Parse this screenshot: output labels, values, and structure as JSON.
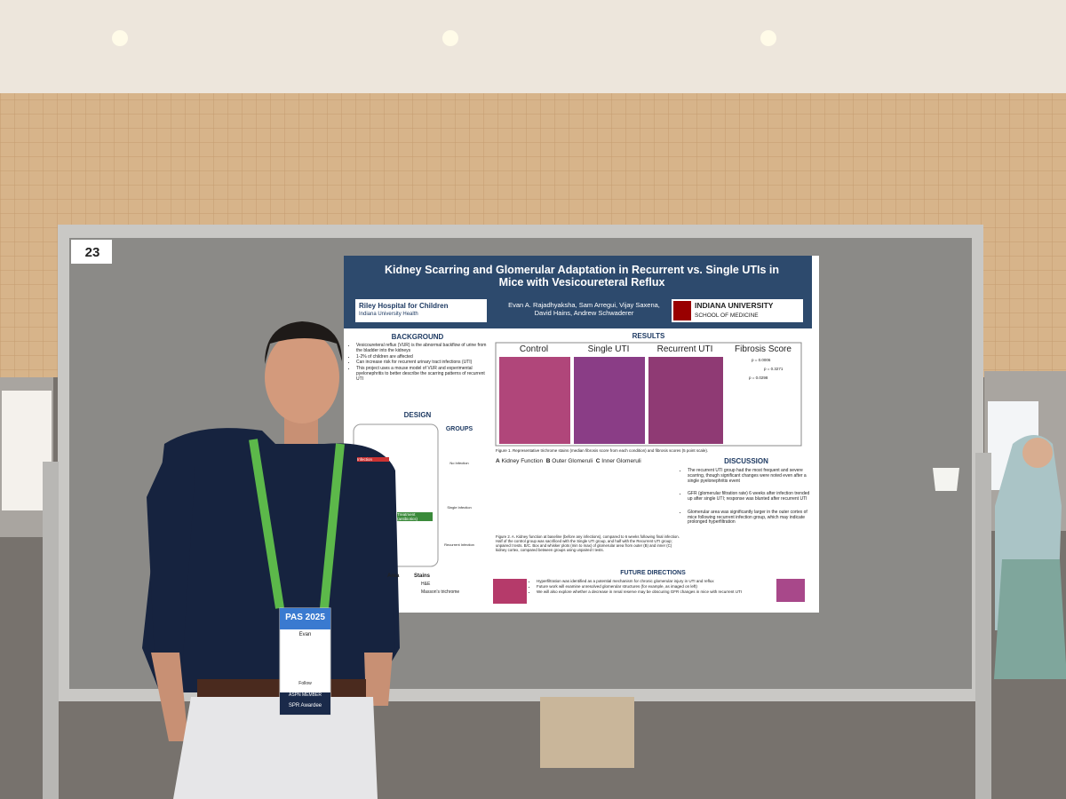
{
  "board_number": "23",
  "poster": {
    "title": "Kidney Scarring and Glomerular Adaptation in Recurrent vs. Single UTIs in Mice with Vesicoureteral Reflux",
    "authors": "Evan A. Rajadhyaksha, Sam Arregui, Vijay Saxena, David Hains, Andrew Schwaderer",
    "logo_left": "Riley Hospital for Children",
    "logo_left_sub": "Indiana University Health",
    "logo_right": "INDIANA UNIVERSITY",
    "logo_right_sub": "SCHOOL OF MEDICINE",
    "background": {
      "heading": "BACKGROUND",
      "bullets": [
        "Vesicoureteral reflux (VUR) is the abnormal backflow of urine from the bladder into the kidneys",
        "1-2% of children are affected",
        "Can increase risk for recurrent urinary tract infections (UTI)",
        "This project uses a mouse model of VUR and experimental pyelonephritis to better describe the scarring patterns of recurrent UTI"
      ]
    },
    "design": {
      "heading": "DESIGN",
      "groups_heading": "GROUPS",
      "groups": [
        "No Infection",
        "Single Infection",
        "Recurrent Infection"
      ],
      "infection": "Infection",
      "treatment": "Treatment (antibiotics)",
      "area": "Area",
      "stains_heading": "Stains",
      "stains": [
        "H&E",
        "Masson's trichrome"
      ]
    },
    "results": {
      "heading": "RESULTS",
      "columns": [
        "Control",
        "Single UTI",
        "Recurrent UTI",
        "Fibrosis Score"
      ],
      "p_values": [
        "p = 0.0006",
        "p = 0.3271",
        "p = 0.0298"
      ],
      "figure1": "Figure 1. Representative trichrome stains (median fibrosis score from each condition) and fibrosis scores (5 point scale).",
      "panels": [
        "A",
        "Kidney Function",
        "B",
        "Outer Glomeruli",
        "C",
        "Inner Glomeruli"
      ],
      "figure2": "Figure 2. A. Kidney function at baseline (before any infections), compared to 6 weeks following final infection. Half of the control group was sacrificed with the Single UTI group, and half with the Recurrent UTI group; unpaired t tests. B/C. Box and whisker plots (min to max) of glomerular area from outer (B) and inner (C) kidney cortex, compared between groups using unpaired t tests."
    },
    "discussion": {
      "heading": "DISCUSSION",
      "bullets": [
        "The recurrent UTI group had the most frequent and severe scarring, though significant changes were noted even after a single pyelonephritis event",
        "GFR (glomerular filtration rate) 6 weeks after infection trended up after single UTI; response was blunted after recurrent UTI",
        "Glomerular area was significantly larger in the outer cortex of mice following recurrent infection group, which may indicate prolonged hyperfiltration"
      ]
    },
    "future": {
      "heading": "FUTURE DIRECTIONS",
      "bullets": [
        "Hyperfiltration was identified as a potential mechanism for chronic glomerular injury in UTI and reflux",
        "Future work will examine unresolved glomerular structures (for example, as imaged on left)",
        "We will also explore whether a decrease in renal reserve may be obscuring GFR changes in mice with recurrent UTI"
      ]
    }
  },
  "badge": {
    "event": "PAS 2025",
    "name": "Evan",
    "follow": "Follow",
    "member": "ASPN MEMBER",
    "ribbon": "SPR Awardee"
  }
}
